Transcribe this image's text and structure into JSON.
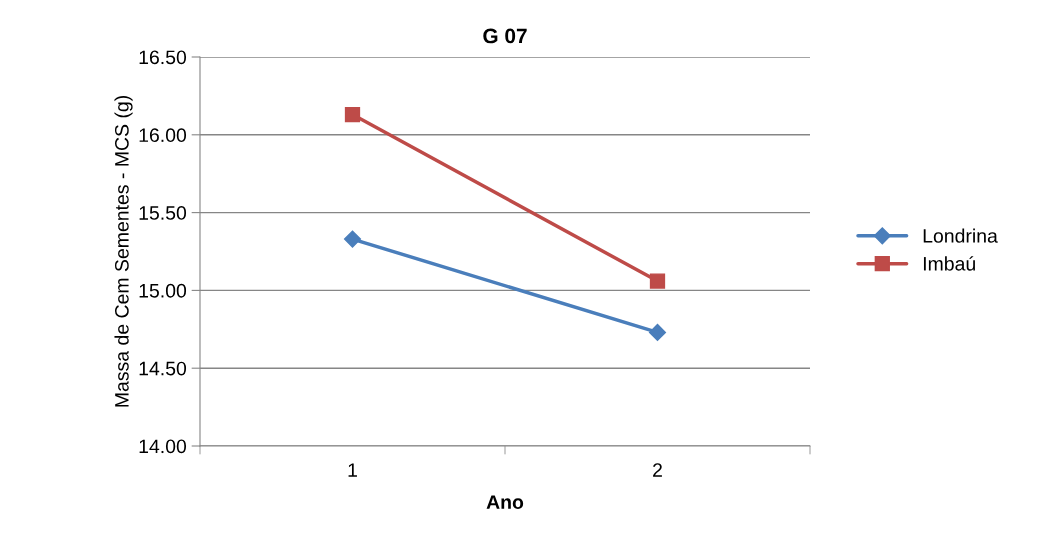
{
  "chart_data": {
    "type": "line",
    "title": "G 07",
    "xlabel": "Ano",
    "ylabel": "Massa de Cem Sementes - MCS (g)",
    "categories": [
      "1",
      "2"
    ],
    "series": [
      {
        "name": "Londrina",
        "color": "#4a7ebb",
        "values": [
          15.33,
          14.73
        ],
        "marker": "diamond"
      },
      {
        "name": "Imbaú",
        "color": "#be4b48",
        "values": [
          16.13,
          15.06
        ],
        "marker": "square"
      }
    ],
    "ylim": [
      14.0,
      16.5
    ],
    "yticks": [
      {
        "value": 14.0,
        "label": "14.00"
      },
      {
        "value": 14.5,
        "label": "14.50"
      },
      {
        "value": 15.0,
        "label": "15.00"
      },
      {
        "value": 15.5,
        "label": "15.50"
      },
      {
        "value": 16.0,
        "label": "16.00"
      },
      {
        "value": 16.5,
        "label": "16.50"
      }
    ],
    "grid": "y",
    "legend": "right"
  }
}
